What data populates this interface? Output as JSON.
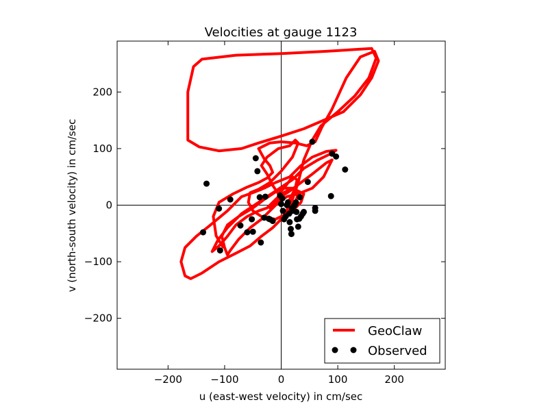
{
  "chart_data": {
    "type": "scatter",
    "title": "Velocities at gauge 1123",
    "xlabel": "u (east-west velocity) in cm/sec",
    "ylabel": "v (north-south velocity) in cm/sec",
    "xlim": [
      -290,
      290
    ],
    "ylim": [
      -290,
      290
    ],
    "xticks": [
      -200,
      -100,
      0,
      100,
      200
    ],
    "yticks": [
      -200,
      -100,
      0,
      100,
      200
    ],
    "xtick_labels": [
      "−200",
      "−100",
      "0",
      "100",
      "200"
    ],
    "ytick_labels": [
      "−200",
      "−100",
      "0",
      "100",
      "200"
    ],
    "grid": false,
    "zero_lines": true,
    "legend": "lower-right",
    "series": [
      {
        "name": "GeoClaw",
        "kind": "line",
        "color": "#ff0000",
        "points": [
          [
            -103,
            -74
          ],
          [
            -115,
            -54
          ],
          [
            -120,
            -20
          ],
          [
            -110,
            5
          ],
          [
            -85,
            20
          ],
          [
            -60,
            32
          ],
          [
            -40,
            40
          ],
          [
            -25,
            48
          ],
          [
            -15,
            58
          ],
          [
            -20,
            70
          ],
          [
            -30,
            82
          ],
          [
            -40,
            100
          ],
          [
            -20,
            110
          ],
          [
            0,
            112
          ],
          [
            25,
            110
          ],
          [
            45,
            105
          ],
          [
            60,
            112
          ],
          [
            72,
            138
          ],
          [
            90,
            170
          ],
          [
            115,
            225
          ],
          [
            140,
            262
          ],
          [
            165,
            272
          ],
          [
            172,
            255
          ],
          [
            160,
            225
          ],
          [
            140,
            195
          ],
          [
            110,
            165
          ],
          [
            75,
            150
          ],
          [
            40,
            135
          ],
          [
            0,
            122
          ],
          [
            -40,
            110
          ],
          [
            -70,
            100
          ],
          [
            -110,
            96
          ],
          [
            -145,
            103
          ],
          [
            -165,
            115
          ],
          [
            -165,
            200
          ],
          [
            -155,
            245
          ],
          [
            -140,
            258
          ],
          [
            -80,
            265
          ],
          [
            0,
            268
          ],
          [
            80,
            272
          ],
          [
            160,
            277
          ],
          [
            168,
            260
          ],
          [
            155,
            225
          ],
          [
            130,
            193
          ],
          [
            100,
            165
          ],
          [
            70,
            140
          ],
          [
            55,
            115
          ],
          [
            40,
            80
          ],
          [
            30,
            40
          ],
          [
            20,
            10
          ],
          [
            10,
            -15
          ],
          [
            5,
            -25
          ],
          [
            10,
            -10
          ],
          [
            15,
            10
          ],
          [
            25,
            30
          ],
          [
            28,
            45
          ],
          [
            20,
            50
          ],
          [
            5,
            30
          ],
          [
            -5,
            20
          ],
          [
            -15,
            35
          ],
          [
            -25,
            55
          ],
          [
            -35,
            70
          ],
          [
            -25,
            85
          ],
          [
            -5,
            100
          ],
          [
            15,
            105
          ],
          [
            25,
            115
          ],
          [
            30,
            110
          ],
          [
            20,
            85
          ],
          [
            0,
            60
          ],
          [
            -20,
            40
          ],
          [
            -40,
            28
          ],
          [
            -55,
            22
          ],
          [
            -58,
            5
          ],
          [
            -50,
            -10
          ],
          [
            -35,
            -20
          ],
          [
            -10,
            -25
          ],
          [
            10,
            -15
          ],
          [
            25,
            -5
          ],
          [
            35,
            5
          ],
          [
            40,
            20
          ],
          [
            20,
            30
          ],
          [
            0,
            20
          ],
          [
            -15,
            5
          ],
          [
            -25,
            -5
          ],
          [
            -40,
            -10
          ],
          [
            -60,
            -20
          ],
          [
            -80,
            -35
          ],
          [
            -95,
            -55
          ],
          [
            -110,
            -72
          ],
          [
            -122,
            -82
          ],
          [
            -112,
            -62
          ],
          [
            -95,
            -40
          ],
          [
            -70,
            -15
          ],
          [
            -40,
            5
          ],
          [
            -10,
            25
          ],
          [
            20,
            45
          ],
          [
            40,
            65
          ],
          [
            65,
            80
          ],
          [
            90,
            92
          ],
          [
            97,
            97
          ],
          [
            80,
            95
          ],
          [
            55,
            85
          ],
          [
            35,
            70
          ],
          [
            15,
            50
          ],
          [
            -10,
            40
          ],
          [
            -30,
            30
          ],
          [
            -50,
            22
          ],
          [
            -70,
            15
          ],
          [
            -95,
            -10
          ],
          [
            -125,
            -35
          ],
          [
            -150,
            -55
          ],
          [
            -170,
            -75
          ],
          [
            -177,
            -100
          ],
          [
            -170,
            -125
          ],
          [
            -160,
            -130
          ],
          [
            -140,
            -120
          ],
          [
            -110,
            -100
          ],
          [
            -80,
            -85
          ],
          [
            -55,
            -72
          ],
          [
            -35,
            -55
          ],
          [
            -15,
            -40
          ],
          [
            0,
            -25
          ],
          [
            15,
            -10
          ],
          [
            25,
            5
          ],
          [
            30,
            20
          ],
          [
            20,
            30
          ],
          [
            0,
            30
          ],
          [
            -15,
            20
          ],
          [
            -30,
            10
          ],
          [
            -50,
            -5
          ],
          [
            -75,
            -20
          ],
          [
            -95,
            -35
          ],
          [
            -105,
            -55
          ],
          [
            -100,
            -75
          ],
          [
            -95,
            -88
          ],
          [
            -90,
            -80
          ],
          [
            -75,
            -60
          ],
          [
            -55,
            -40
          ],
          [
            -35,
            -25
          ],
          [
            -20,
            -10
          ],
          [
            -5,
            5
          ],
          [
            10,
            15
          ],
          [
            30,
            20
          ],
          [
            55,
            30
          ],
          [
            75,
            50
          ],
          [
            90,
            80
          ],
          [
            80,
            75
          ],
          [
            55,
            55
          ],
          [
            35,
            40
          ],
          [
            15,
            25
          ],
          [
            0,
            15
          ],
          [
            -10,
            5
          ],
          [
            -20,
            -5
          ]
        ]
      },
      {
        "name": "Observed",
        "kind": "markers",
        "color": "#000000",
        "points": [
          [
            -132,
            38
          ],
          [
            -110,
            -6
          ],
          [
            -108,
            -80
          ],
          [
            -138,
            -48
          ],
          [
            -90,
            10
          ],
          [
            -72,
            -36
          ],
          [
            -60,
            -48
          ],
          [
            -52,
            -25
          ],
          [
            -50,
            -47
          ],
          [
            -45,
            83
          ],
          [
            -42,
            60
          ],
          [
            -38,
            14
          ],
          [
            -36,
            -66
          ],
          [
            -30,
            -22
          ],
          [
            -28,
            15
          ],
          [
            -22,
            -24
          ],
          [
            -20,
            -25
          ],
          [
            -15,
            -28
          ],
          [
            -2,
            17
          ],
          [
            0,
            2
          ],
          [
            2,
            12
          ],
          [
            3,
            -10
          ],
          [
            5,
            -25
          ],
          [
            8,
            -20
          ],
          [
            10,
            0
          ],
          [
            12,
            5
          ],
          [
            14,
            -15
          ],
          [
            15,
            -30
          ],
          [
            17,
            -42
          ],
          [
            18,
            -51
          ],
          [
            19,
            -5
          ],
          [
            20,
            -10
          ],
          [
            22,
            -2
          ],
          [
            24,
            0
          ],
          [
            25,
            2
          ],
          [
            26,
            5
          ],
          [
            27,
            -12
          ],
          [
            28,
            -25
          ],
          [
            30,
            -38
          ],
          [
            32,
            -24
          ],
          [
            33,
            14
          ],
          [
            35,
            -20
          ],
          [
            38,
            -15
          ],
          [
            40,
            -12
          ],
          [
            47,
            41
          ],
          [
            55,
            112
          ],
          [
            60,
            -10
          ],
          [
            60,
            -5
          ],
          [
            88,
            16
          ],
          [
            90,
            91
          ],
          [
            97,
            86
          ],
          [
            113,
            63
          ]
        ]
      }
    ]
  }
}
